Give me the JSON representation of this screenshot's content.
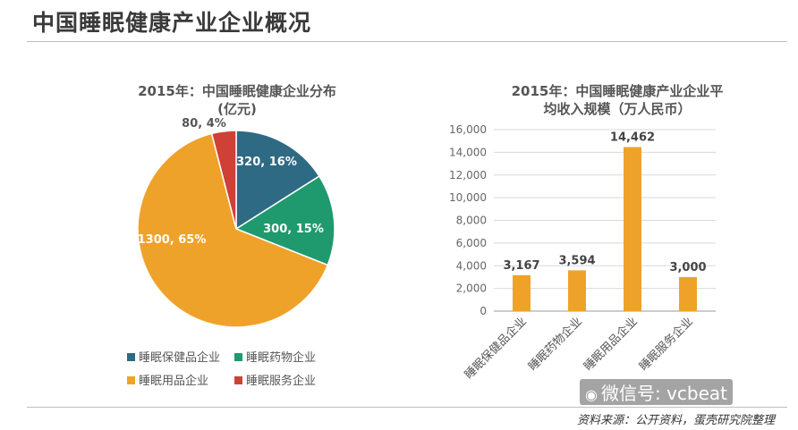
{
  "page": {
    "title": "中国睡眠健康产业企业概况",
    "source": "资料来源：公开资料，蛋壳研究院整理",
    "watermark": "微信号: vcbeat"
  },
  "colors": {
    "teal": "#2e6a83",
    "green": "#1e9a6e",
    "orange": "#efa22a",
    "red": "#cf4036"
  },
  "chart_data": [
    {
      "type": "pie",
      "title_line1": "2015年：中国睡眠健康企业分布",
      "title_line2": "(亿元)",
      "slices": [
        {
          "name": "睡眠保健品企业",
          "value": 320,
          "percent": 16,
          "label": "320, 16%",
          "color": "#2e6a83"
        },
        {
          "name": "睡眠药物企业",
          "value": 300,
          "percent": 15,
          "label": "300, 15%",
          "color": "#1e9a6e"
        },
        {
          "name": "睡眠用品企业",
          "value": 1300,
          "percent": 65,
          "label": "1300, 65%",
          "color": "#efa22a"
        },
        {
          "name": "睡眠服务企业",
          "value": 80,
          "percent": 4,
          "label": "80, 4%",
          "color": "#cf4036"
        }
      ],
      "legend": [
        "睡眠保健品企业",
        "睡眠药物企业",
        "睡眠用品企业",
        "睡眠服务企业"
      ]
    },
    {
      "type": "bar",
      "title_line1": "2015年：中国睡眠健康产业企业平",
      "title_line2": "均收入规模（万人民币）",
      "categories": [
        "睡眠保健品企业",
        "睡眠药物企业",
        "睡眠用品企业",
        "睡眠服务企业"
      ],
      "values": [
        3167,
        3594,
        14462,
        3000
      ],
      "value_labels": [
        "3,167",
        "3,594",
        "14,462",
        "3,000"
      ],
      "ylim": [
        0,
        16000
      ],
      "yticks": [
        "0",
        "2,000",
        "4,000",
        "6,000",
        "8,000",
        "10,000",
        "12,000",
        "14,000",
        "16,000"
      ],
      "color": "#efa22a",
      "grid": true
    }
  ]
}
